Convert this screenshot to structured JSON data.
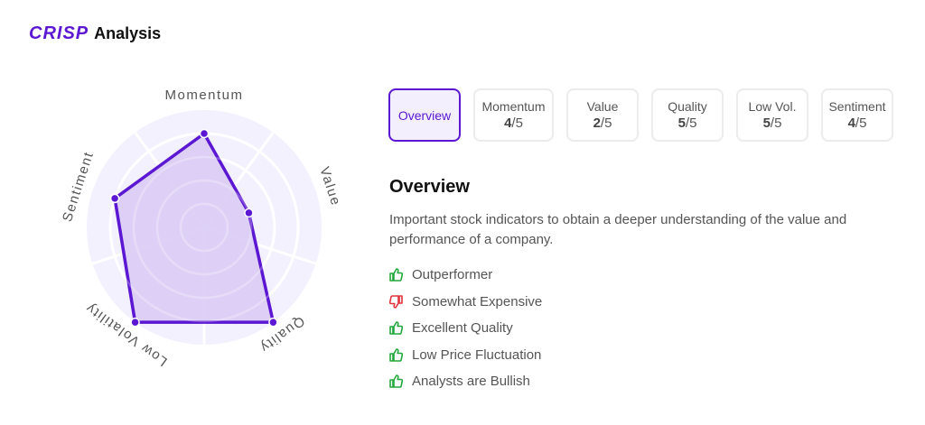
{
  "header": {
    "brand": "CRISP",
    "title": "Analysis"
  },
  "tabs": [
    {
      "label": "Overview",
      "active": true
    },
    {
      "label": "Momentum",
      "score": "4",
      "max": "/5"
    },
    {
      "label": "Value",
      "score": "2",
      "max": "/5"
    },
    {
      "label": "Quality",
      "score": "5",
      "max": "/5"
    },
    {
      "label": "Low Vol.",
      "score": "5",
      "max": "/5"
    },
    {
      "label": "Sentiment",
      "score": "4",
      "max": "/5"
    }
  ],
  "overview": {
    "title": "Overview",
    "description": "Important stock indicators to obtain a deeper understanding of the value and performance of a company.",
    "items": [
      {
        "text": "Outperformer",
        "icon": "thumbs-up-icon",
        "color": "#22a83a"
      },
      {
        "text": "Somewhat Expensive",
        "icon": "thumbs-down-icon",
        "color": "#e0333b"
      },
      {
        "text": "Excellent Quality",
        "icon": "thumbs-up-icon",
        "color": "#22a83a"
      },
      {
        "text": "Low Price Fluctuation",
        "icon": "thumbs-up-icon",
        "color": "#22a83a"
      },
      {
        "text": "Analysts are Bullish",
        "icon": "thumbs-up-icon",
        "color": "#22a83a"
      }
    ]
  },
  "chart_data": {
    "type": "radar",
    "axes": [
      "Momentum",
      "Value",
      "Quality",
      "Low Volatility",
      "Sentiment"
    ],
    "values": [
      4,
      2,
      5,
      5,
      4
    ],
    "range": [
      0,
      5
    ],
    "rings": 5,
    "colors": {
      "line": "#5b17d1",
      "fill": "#d8c9f4",
      "background": "#f3f1fd"
    }
  }
}
